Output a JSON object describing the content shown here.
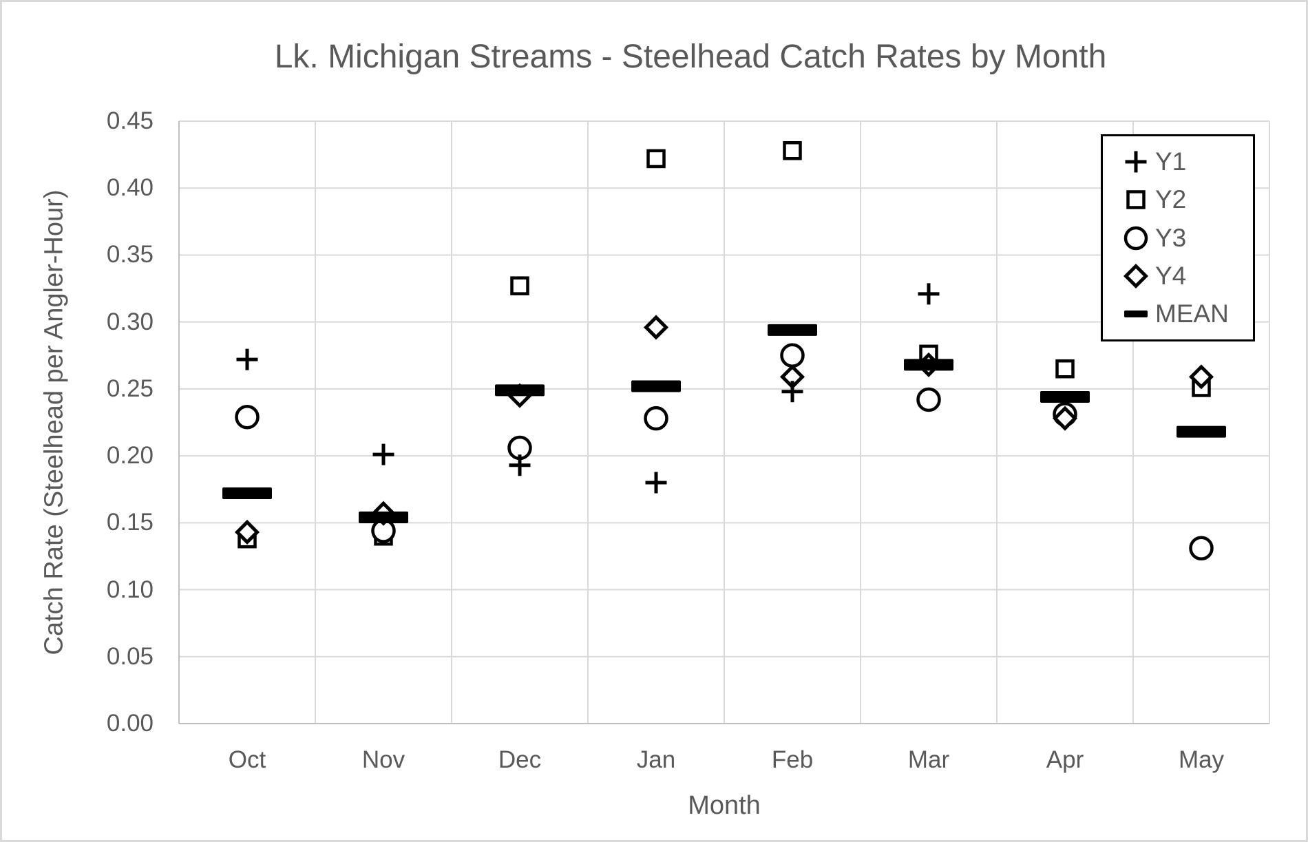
{
  "chart_data": {
    "type": "scatter",
    "title": "Lk. Michigan Streams - Steelhead Catch Rates by Month",
    "xlabel": "Month",
    "ylabel": "Catch Rate (Steelhead per Angler-Hour)",
    "categories": [
      "Oct",
      "Nov",
      "Dec",
      "Jan",
      "Feb",
      "Mar",
      "Apr",
      "May"
    ],
    "ylim": [
      0.0,
      0.45
    ],
    "ytick_step": 0.05,
    "grid": true,
    "legend_position": "top-right",
    "series": [
      {
        "name": "Y1",
        "marker": "plus",
        "values": [
          0.272,
          0.201,
          0.193,
          0.18,
          0.248,
          0.321,
          null,
          null
        ]
      },
      {
        "name": "Y2",
        "marker": "square",
        "values": [
          0.138,
          0.14,
          0.327,
          0.422,
          0.428,
          0.276,
          0.265,
          0.251
        ]
      },
      {
        "name": "Y3",
        "marker": "circle",
        "values": [
          0.229,
          0.144,
          0.206,
          0.228,
          0.275,
          0.242,
          0.231,
          0.131
        ]
      },
      {
        "name": "Y4",
        "marker": "diamond",
        "values": [
          0.143,
          0.157,
          0.245,
          0.296,
          0.259,
          0.268,
          0.228,
          0.259
        ]
      },
      {
        "name": "MEAN",
        "marker": "dash",
        "values": [
          0.172,
          0.154,
          0.249,
          0.252,
          0.294,
          0.268,
          0.244,
          0.218
        ]
      }
    ],
    "colors": {
      "marker": "#000000",
      "text": "#595959",
      "gridline": "#D9D9D9",
      "axis_line": "#BFBFBF",
      "legend_border": "#000000",
      "background": "#FFFFFF"
    }
  }
}
